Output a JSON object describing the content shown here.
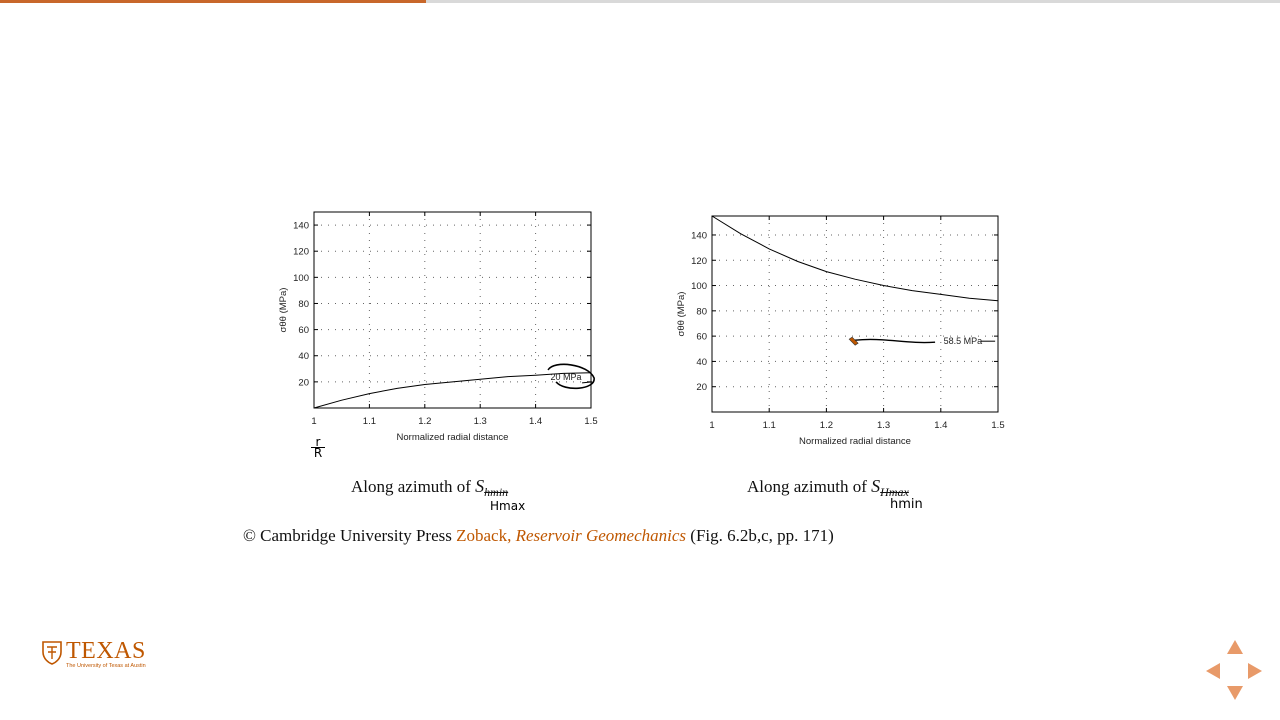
{
  "progress": {
    "fraction": 0.333,
    "color": "#c8672a"
  },
  "chart_data": [
    {
      "type": "line",
      "xlabel": "Normalized radial distance",
      "ylabel": "σθθ (MPa)",
      "xlim": [
        1,
        1.5
      ],
      "ylim": [
        0,
        150
      ],
      "xticks": [
        "1",
        "1.1",
        "1.2",
        "1.3",
        "1.4",
        "1.5"
      ],
      "yticks": [
        "140",
        "120",
        "100",
        "80",
        "60",
        "40",
        "20"
      ],
      "grid": true,
      "series": [
        {
          "x": [
            1.0,
            1.05,
            1.1,
            1.15,
            1.2,
            1.25,
            1.3,
            1.35,
            1.4,
            1.45,
            1.5
          ],
          "values": [
            0,
            6,
            11,
            15,
            18,
            20,
            22,
            24,
            25,
            26.5,
            27
          ]
        }
      ],
      "annotation": "20 MPa",
      "caption": {
        "prefix": "Along azimuth of ",
        "symbol": "S",
        "subscript": "hmin",
        "handwritten": "Hmax"
      },
      "handwritten_axis": "r/R"
    },
    {
      "type": "line",
      "xlabel": "Normalized radial distance",
      "ylabel": "σθθ (MPa)",
      "xlim": [
        1,
        1.5
      ],
      "ylim": [
        0,
        155
      ],
      "xticks": [
        "1",
        "1.1",
        "1.2",
        "1.3",
        "1.4",
        "1.5"
      ],
      "yticks": [
        "140",
        "120",
        "100",
        "80",
        "60",
        "40",
        "20"
      ],
      "grid": true,
      "series": [
        {
          "x": [
            1.0,
            1.05,
            1.1,
            1.15,
            1.2,
            1.25,
            1.3,
            1.35,
            1.4,
            1.45,
            1.5
          ],
          "values": [
            155,
            141,
            129,
            119,
            111,
            105,
            100,
            96,
            93,
            90,
            88
          ]
        }
      ],
      "annotation": "58.5 MPa",
      "caption": {
        "prefix": "Along azimuth of ",
        "symbol": "S",
        "subscript": "Hmax",
        "handwritten": "hmin"
      }
    }
  ],
  "copyright": {
    "prefix": "© Cambridge University Press ",
    "author": "Zoback, ",
    "title": "Reservoir Geomechanics",
    "suffix": " (Fig. 6.2b,c, pp. 171)"
  },
  "logo": {
    "word": "TEXAS",
    "tagline": "The University of Texas at Austin"
  },
  "colors": {
    "accent": "#bf5700",
    "nav_arrow": "#e89a69"
  },
  "icons": {
    "nav_up": "triangle-up-icon",
    "nav_down": "triangle-down-icon",
    "nav_left": "triangle-left-icon",
    "nav_right": "triangle-right-icon"
  }
}
